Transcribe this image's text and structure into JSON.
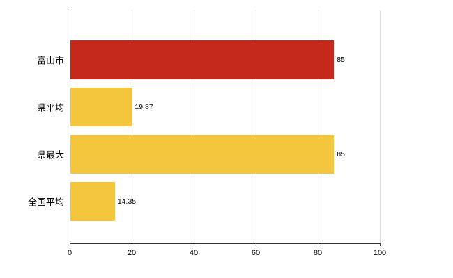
{
  "chart_data": {
    "type": "bar",
    "orientation": "horizontal",
    "title": "",
    "categories": [
      "富山市",
      "県平均",
      "県最大",
      "全国平均"
    ],
    "values": [
      85,
      19.87,
      85,
      14.35
    ],
    "value_labels": [
      "85",
      "19.87",
      "85",
      "14.35"
    ],
    "bar_colors": [
      "#c5291b",
      "#f4c63d",
      "#f4c63d",
      "#f4c63d"
    ],
    "xlabel": "",
    "ylabel": "",
    "xlim": [
      0,
      100
    ],
    "x_ticks": [
      0,
      20,
      40,
      60,
      80,
      100
    ],
    "grid": true,
    "legend": "none"
  }
}
